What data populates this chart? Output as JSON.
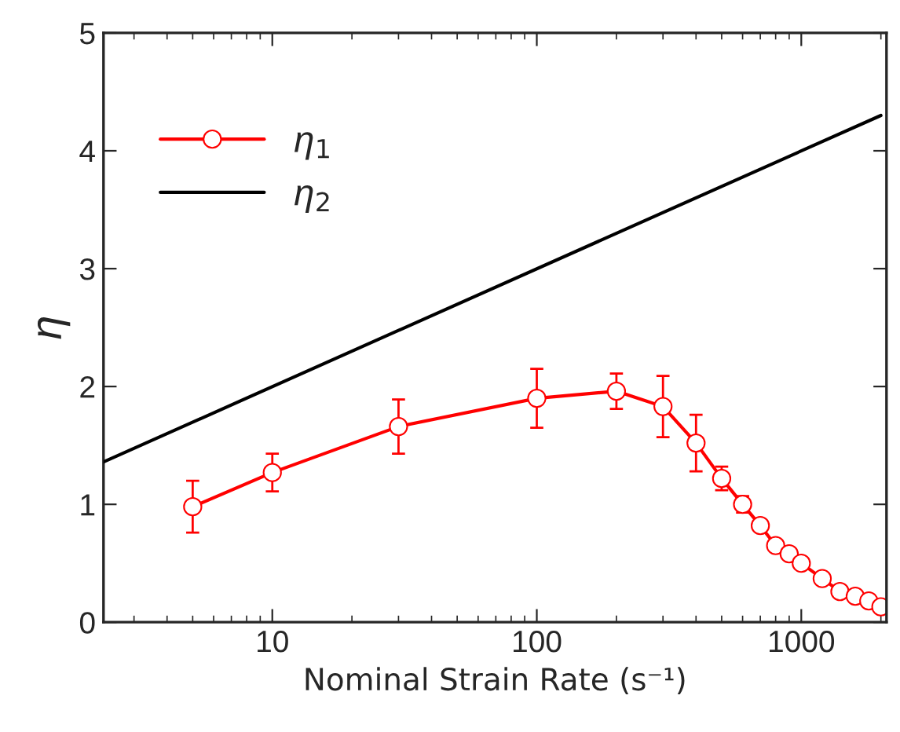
{
  "chart_data": {
    "type": "line",
    "xlabel": "Nominal Strain Rate (s⁻¹)",
    "ylabel": "η",
    "log": "x",
    "xlim": [
      2.3,
      2100
    ],
    "xticks": [
      10,
      100,
      1000
    ],
    "ylim": [
      0,
      5
    ],
    "yticks": [
      0,
      1,
      2,
      3,
      4,
      5
    ],
    "grid": false,
    "legend": "top left",
    "series": [
      {
        "name": "η$_{1}$",
        "color": "#ff0000",
        "marker": "circle",
        "x": [
          5,
          10,
          30,
          100,
          200,
          300,
          400,
          500,
          600,
          700,
          800,
          900,
          1000,
          1200,
          1400,
          1600,
          1800,
          2000
        ],
        "values": [
          0.98,
          1.27,
          1.66,
          1.9,
          1.96,
          1.83,
          1.52,
          1.22,
          1.0,
          0.82,
          0.65,
          0.58,
          0.5,
          0.37,
          0.26,
          0.22,
          0.18,
          0.13
        ],
        "errors": [
          0.22,
          0.16,
          0.23,
          0.25,
          0.15,
          0.26,
          0.24,
          0.1,
          0.07,
          null,
          null,
          null,
          null,
          null,
          null,
          null,
          null,
          null
        ]
      },
      {
        "name": "η$_{2}$",
        "color": "#000000",
        "marker": "none",
        "x": [
          2.3,
          2000
        ],
        "values": [
          1.36,
          4.3
        ]
      }
    ]
  }
}
